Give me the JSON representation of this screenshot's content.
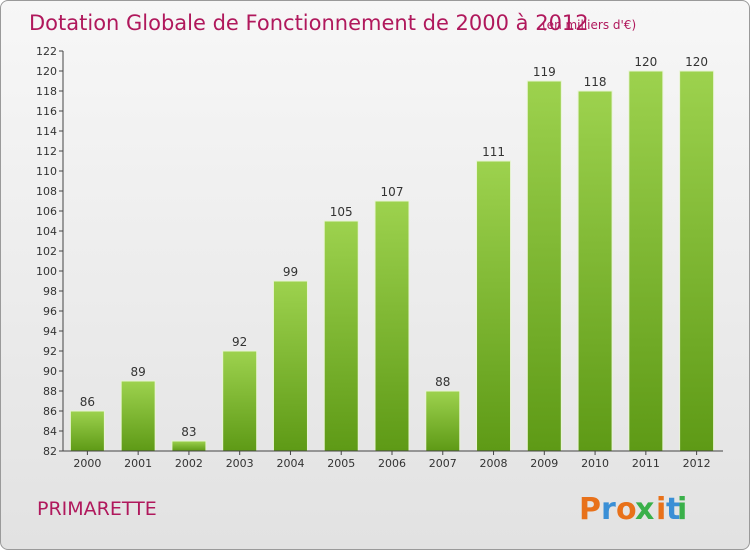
{
  "chart_data": {
    "type": "bar",
    "title": "Dotation Globale de Fonctionnement de 2000 à 2012",
    "subtitle": "(en milliers d'€)",
    "categories": [
      "2000",
      "2001",
      "2002",
      "2003",
      "2004",
      "2005",
      "2006",
      "2007",
      "2008",
      "2009",
      "2010",
      "2011",
      "2012"
    ],
    "values": [
      86,
      89,
      83,
      92,
      99,
      105,
      107,
      88,
      111,
      119,
      118,
      120,
      120
    ],
    "ylim": [
      82,
      122
    ],
    "yticks": [
      82,
      84,
      86,
      88,
      90,
      92,
      94,
      96,
      98,
      100,
      102,
      104,
      106,
      108,
      110,
      112,
      114,
      116,
      118,
      120,
      122
    ],
    "grid": false,
    "bar_color_light": "#9dd24e",
    "bar_color_dark": "#5e9a16"
  },
  "footer": {
    "commune": "PRIMARETTE",
    "logo_text": "Proxiti",
    "logo_colors": [
      "#e8711a",
      "#3a8fd6",
      "#e8711a",
      "#3ab04a",
      "#e8711a",
      "#3a8fd6",
      "#3ab04a"
    ]
  }
}
